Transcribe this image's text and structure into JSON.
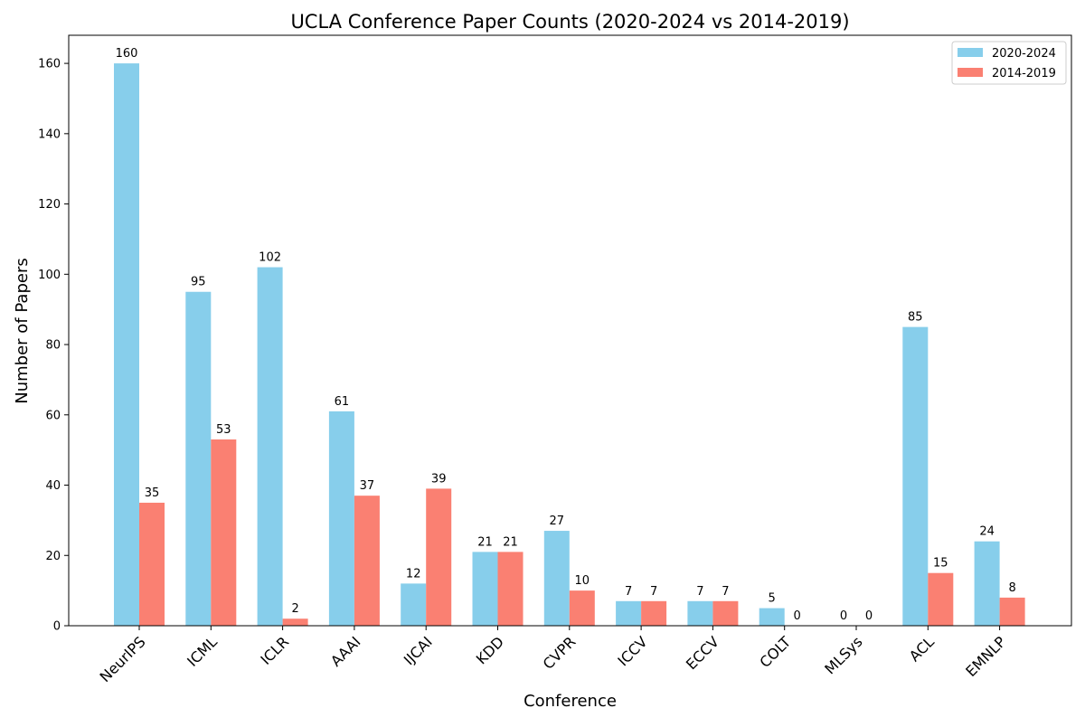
{
  "chart_data": {
    "type": "bar",
    "title": "UCLA Conference Paper Counts (2020-2024 vs 2014-2019)",
    "xlabel": "Conference",
    "ylabel": "Number of Papers",
    "categories": [
      "NeurIPS",
      "ICML",
      "ICLR",
      "AAAI",
      "IJCAI",
      "KDD",
      "CVPR",
      "ICCV",
      "ECCV",
      "COLT",
      "MLSys",
      "ACL",
      "EMNLP"
    ],
    "series": [
      {
        "name": "2020-2024",
        "color": "#87CEEB",
        "values": [
          160,
          95,
          102,
          61,
          12,
          21,
          27,
          7,
          7,
          5,
          0,
          85,
          24
        ]
      },
      {
        "name": "2014-2019",
        "color": "#FA8072",
        "values": [
          35,
          53,
          2,
          37,
          39,
          21,
          10,
          7,
          7,
          0,
          0,
          15,
          8
        ]
      }
    ],
    "ylim": [
      0,
      168
    ],
    "yticks": [
      0,
      20,
      40,
      60,
      80,
      100,
      120,
      140,
      160
    ],
    "grid": false,
    "legend_position": "top-right",
    "data_labels": true
  }
}
